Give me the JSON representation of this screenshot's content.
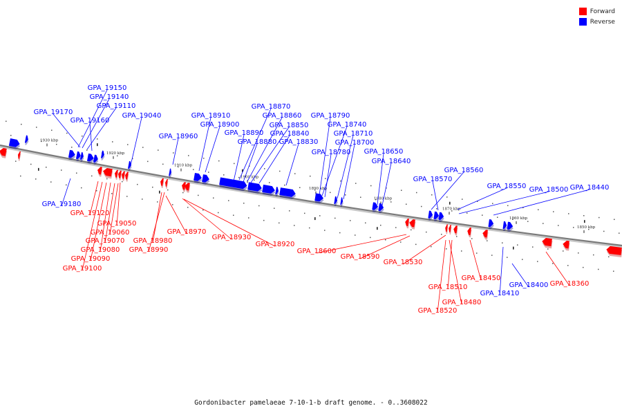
{
  "legend": {
    "forward_label": "Forward",
    "reverse_label": "Reverse",
    "forward_color": "#ff0000",
    "reverse_color": "#0000ff"
  },
  "caption": "Gordonibacter pamelaeae 7-10-1-b draft genome. - 0..3608022",
  "ticks": [
    "1930 kbp",
    "1920 kbp",
    "1910 kbp",
    "1900 kbp",
    "1890 kbp",
    "1880 kbp",
    "1870 kbp",
    "1860 kbp",
    "1850 kbp"
  ],
  "genes_above": [
    "GPA_19150",
    "GPA_19140",
    "GPA_19110",
    "GPA_19170",
    "GPA_19160",
    "GPA_19040",
    "GPA_18960",
    "GPA_18910",
    "GPA_18900",
    "GPA_18870",
    "GPA_18860",
    "GPA_18890",
    "GPA_18850",
    "GPA_18840",
    "GPA_18880",
    "GPA_18830",
    "GPA_18790",
    "GPA_18740",
    "GPA_18710",
    "GPA_18700",
    "GPA_18780",
    "GPA_18650",
    "GPA_18640",
    "GPA_18560",
    "GPA_18570",
    "GPA_18550",
    "GPA_18500",
    "GPA_18440"
  ],
  "genes_below_blue": [
    "GPA_19180",
    "GPA_18400",
    "GPA_18410"
  ],
  "genes_below_red": [
    "GPA_19120",
    "GPA_19050",
    "GPA_19060",
    "GPA_19070",
    "GPA_19080",
    "GPA_19090",
    "GPA_19100",
    "GPA_18980",
    "GPA_18990",
    "GPA_18970",
    "GPA_18930",
    "GPA_18920",
    "GPA_18600",
    "GPA_18590",
    "GPA_18530",
    "GPA_18450",
    "GPA_18510",
    "GPA_18480",
    "GPA_18520",
    "GPA_18360"
  ]
}
